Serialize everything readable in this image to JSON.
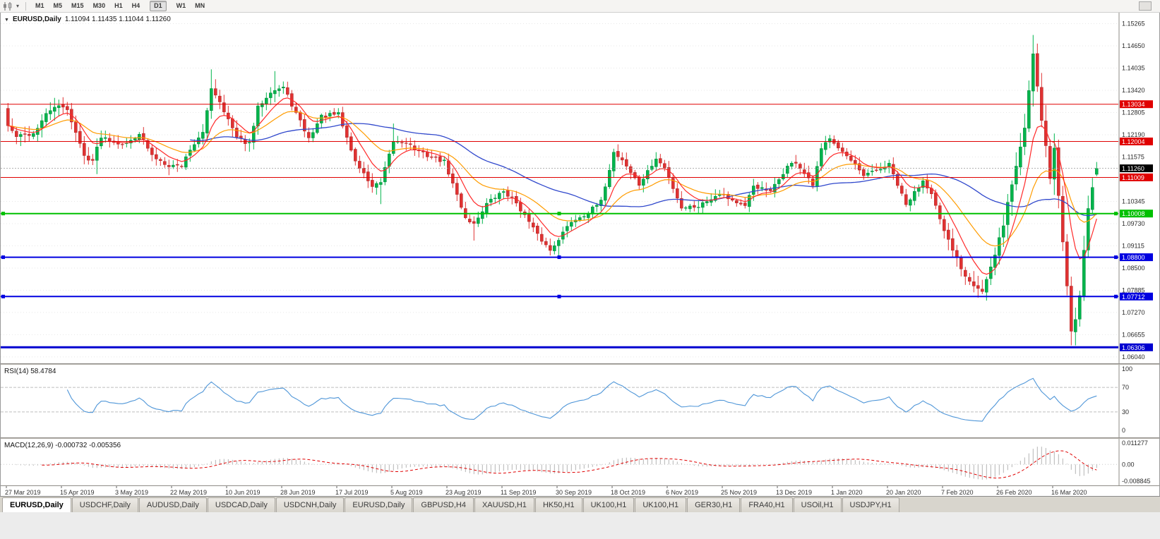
{
  "icons": {
    "collapse": "▼",
    "caret": "▾"
  },
  "toolbar": {
    "timeframes": [
      "M1",
      "M5",
      "M15",
      "M30",
      "H1",
      "H4",
      "D1",
      "W1",
      "MN"
    ],
    "active_timeframe": "D1"
  },
  "chart": {
    "symbol": "EURUSD,Daily",
    "ohlc_text": "1.11094 1.11435 1.11044 1.11260",
    "current_price": {
      "value": 1.1126,
      "label": "1.11260",
      "box_color": "#000000"
    },
    "price_scale": [
      "1.15265",
      "1.14650",
      "1.14035",
      "1.13420",
      "1.12805",
      "1.12190",
      "1.11575",
      "1.10960",
      "1.10345",
      "1.09730",
      "1.09115",
      "1.08500",
      "1.07885",
      "1.07270",
      "1.06655",
      "1.06040"
    ],
    "hlines": [
      {
        "value": 1.13034,
        "label": "1.13034",
        "color": "#e00000",
        "width": 1,
        "handles": false
      },
      {
        "value": 1.12004,
        "label": "1.12004",
        "color": "#e00000",
        "width": 1,
        "handles": false
      },
      {
        "value": 1.11009,
        "label": "1.11009",
        "color": "#e00000",
        "width": 1,
        "handles": false
      },
      {
        "value": 1.10008,
        "label": "1.10008",
        "color": "#00c000",
        "width": 2,
        "handles": true
      },
      {
        "value": 1.088,
        "label": "1.08800",
        "color": "#0000e0",
        "width": 2,
        "handles": true
      },
      {
        "value": 1.07712,
        "label": "1.07712",
        "color": "#0000e0",
        "width": 2,
        "handles": true
      },
      {
        "value": 1.06306,
        "label": "1.06306",
        "color": "#0000d0",
        "width": 3,
        "handles": false
      }
    ],
    "colors": {
      "up": "#00b44c",
      "up_stroke": "#047a34",
      "down": "#e03232",
      "down_stroke": "#9c1e1e",
      "ma_fast": "#ff2a2a",
      "ma_mid": "#ff9c00",
      "ma_slow": "#3048cc",
      "rsi_line": "#4f96d8",
      "macd_hist": "#b4b4b4",
      "macd_signal": "#e00000"
    }
  },
  "chart_data": {
    "type": "candlestick",
    "symbol": "EURUSD",
    "period": "Daily",
    "count": 258,
    "seed": 42,
    "first_open": 1.1292,
    "price_range": {
      "min": 1.0598,
      "max": 1.1545
    },
    "ma_periods": {
      "fast": 8,
      "mid": 21,
      "slow": 44
    },
    "close_anchors": [
      [
        0,
        1.1244
      ],
      [
        2,
        1.1214
      ],
      [
        6,
        1.1222
      ],
      [
        9,
        1.1274
      ],
      [
        11,
        1.1298
      ],
      [
        14,
        1.129
      ],
      [
        18,
        1.116
      ],
      [
        20,
        1.1148
      ],
      [
        22,
        1.1215
      ],
      [
        25,
        1.12
      ],
      [
        28,
        1.1193
      ],
      [
        31,
        1.1224
      ],
      [
        34,
        1.116
      ],
      [
        38,
        1.1135
      ],
      [
        41,
        1.1133
      ],
      [
        43,
        1.118
      ],
      [
        46,
        1.1222
      ],
      [
        48,
        1.135
      ],
      [
        50,
        1.1312
      ],
      [
        54,
        1.121
      ],
      [
        57,
        1.1193
      ],
      [
        59,
        1.1294
      ],
      [
        62,
        1.134
      ],
      [
        65,
        1.135
      ],
      [
        68,
        1.1278
      ],
      [
        71,
        1.1208
      ],
      [
        74,
        1.127
      ],
      [
        78,
        1.1276
      ],
      [
        82,
        1.1145
      ],
      [
        86,
        1.1076
      ],
      [
        88,
        1.1085
      ],
      [
        91,
        1.12
      ],
      [
        94,
        1.1199
      ],
      [
        97,
        1.1171
      ],
      [
        103,
        1.1144
      ],
      [
        108,
        1.099
      ],
      [
        110,
        1.0972
      ],
      [
        113,
        1.1028
      ],
      [
        117,
        1.1063
      ],
      [
        120,
        1.1031
      ],
      [
        125,
        1.0941
      ],
      [
        128,
        1.0899
      ],
      [
        130,
        1.0932
      ],
      [
        133,
        1.0979
      ],
      [
        137,
        1.1004
      ],
      [
        140,
        1.1033
      ],
      [
        143,
        1.117
      ],
      [
        145,
        1.115
      ],
      [
        149,
        1.108
      ],
      [
        153,
        1.1152
      ],
      [
        155,
        1.1127
      ],
      [
        159,
        1.1018
      ],
      [
        163,
        1.1022
      ],
      [
        168,
        1.1058
      ],
      [
        174,
        1.1018
      ],
      [
        176,
        1.1078
      ],
      [
        180,
        1.106
      ],
      [
        184,
        1.1131
      ],
      [
        186,
        1.1143
      ],
      [
        190,
        1.1078
      ],
      [
        192,
        1.1177
      ],
      [
        194,
        1.1213
      ],
      [
        197,
        1.1172
      ],
      [
        202,
        1.1104
      ],
      [
        208,
        1.1136
      ],
      [
        212,
        1.1024
      ],
      [
        216,
        1.1093
      ],
      [
        218,
        1.106
      ],
      [
        221,
        1.0945
      ],
      [
        226,
        1.0831
      ],
      [
        230,
        1.0786
      ],
      [
        233,
        1.0881
      ],
      [
        236,
        1.1026
      ],
      [
        238,
        1.1134
      ],
      [
        240,
        1.1239
      ],
      [
        242,
        1.1449
      ],
      [
        244,
        1.1271
      ],
      [
        246,
        1.1106
      ],
      [
        247,
        1.1181
      ],
      [
        249,
        1.0917
      ],
      [
        251,
        1.0688
      ],
      [
        252,
        1.0725
      ],
      [
        253,
        1.0786
      ],
      [
        254,
        1.0884
      ],
      [
        255,
        1.103
      ],
      [
        256,
        1.106
      ],
      [
        257,
        1.1126
      ]
    ],
    "wick_overrides": [
      {
        "i": 21,
        "low": 1.111
      },
      {
        "i": 38,
        "low": 1.1107
      },
      {
        "i": 48,
        "high": 1.14
      },
      {
        "i": 63,
        "high": 1.1395
      },
      {
        "i": 88,
        "low": 1.1027
      },
      {
        "i": 91,
        "high": 1.125
      },
      {
        "i": 110,
        "low": 1.0926
      },
      {
        "i": 130,
        "low": 1.0879
      },
      {
        "i": 230,
        "low": 1.0778
      },
      {
        "i": 242,
        "high": 1.1495
      },
      {
        "i": 251,
        "low": 1.0636
      }
    ],
    "last_candle": {
      "o": 1.11094,
      "h": 1.11435,
      "l": 1.11044,
      "c": 1.1126
    }
  },
  "rsi": {
    "label": "RSI(14) 58.4784",
    "period": 14,
    "last_value": 58.4784,
    "scale": [
      "100",
      "70",
      "30",
      "0"
    ],
    "dashed_levels": [
      70,
      30
    ]
  },
  "macd": {
    "label": "MACD(12,26,9) -0.000732 -0.005356",
    "params": "12,26,9",
    "values": [
      "-0.000732",
      "-0.005356"
    ],
    "scale": [
      "0.011277",
      "0.00",
      "-0.008845"
    ],
    "scale_values": [
      0.011277,
      0.0,
      -0.008845
    ]
  },
  "time_axis": {
    "label_step_bars": 13,
    "labels": [
      "27 Mar 2019",
      "15 Apr 2019",
      "3 May 2019",
      "22 May 2019",
      "10 Jun 2019",
      "28 Jun 2019",
      "17 Jul 2019",
      "5 Aug 2019",
      "23 Aug 2019",
      "11 Sep 2019",
      "30 Sep 2019",
      "18 Oct 2019",
      "6 Nov 2019",
      "25 Nov 2019",
      "13 Dec 2019",
      "1 Jan 2020",
      "20 Jan 2020",
      "7 Feb 2020",
      "26 Feb 2020",
      "16 Mar 2020"
    ]
  },
  "tabs": {
    "active_index": 0,
    "items": [
      "EURUSD,Daily",
      "USDCHF,Daily",
      "AUDUSD,Daily",
      "USDCAD,Daily",
      "USDCNH,Daily",
      "EURUSD,Daily",
      "GBPUSD,H4",
      "XAUUSD,H1",
      "HK50,H1",
      "UK100,H1",
      "UK100,H1",
      "GER30,H1",
      "FRA40,H1",
      "USOil,H1",
      "USDJPY,H1"
    ]
  }
}
